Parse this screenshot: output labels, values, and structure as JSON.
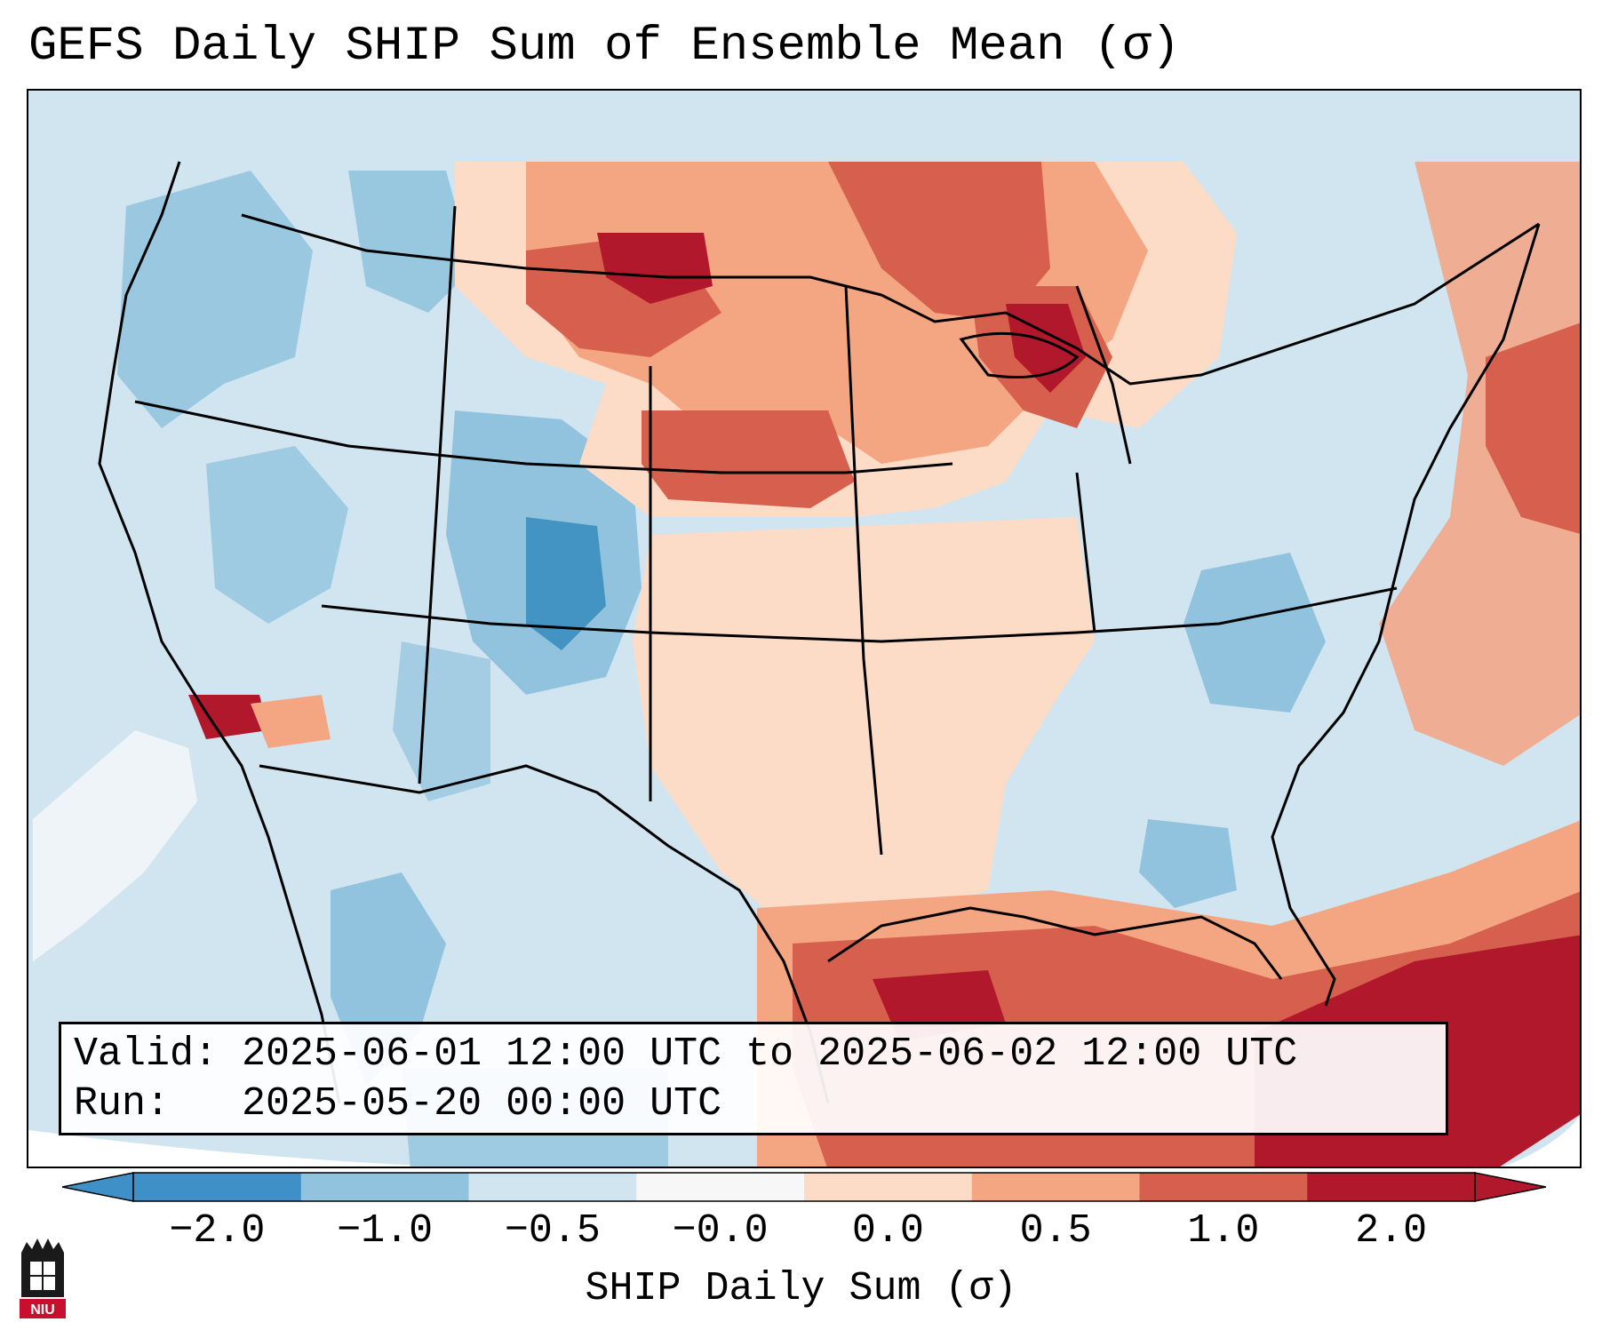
{
  "title": "GEFS Daily SHIP Sum of Ensemble Mean (σ)",
  "info": {
    "valid_label": "Valid:",
    "valid_value": "2025-06-01 12:00 UTC to 2025-06-02 12:00 UTC",
    "run_label": "Run:",
    "run_value": "2025-05-20 00:00 UTC"
  },
  "colorbar": {
    "label": "SHIP Daily Sum (σ)",
    "ticks": [
      "−2.0",
      "−1.0",
      "−0.5",
      "−0.0",
      "0.0",
      "0.5",
      "1.0",
      "2.0"
    ],
    "colors": [
      "#4090c8",
      "#91c3de",
      "#d1e5f0",
      "#f7f7f7",
      "#fcdbc7",
      "#f4a582",
      "#d6604d",
      "#b2182b"
    ]
  },
  "logo": {
    "text": "NIU"
  },
  "colors": {
    "strong_positive": "#b2182b",
    "positive": "#d6604d",
    "mild_positive": "#f4a582",
    "slight_positive": "#fcdbc7",
    "slight_negative": "#d1e5f0",
    "negative": "#91c3de",
    "strong_negative": "#4393c3"
  }
}
